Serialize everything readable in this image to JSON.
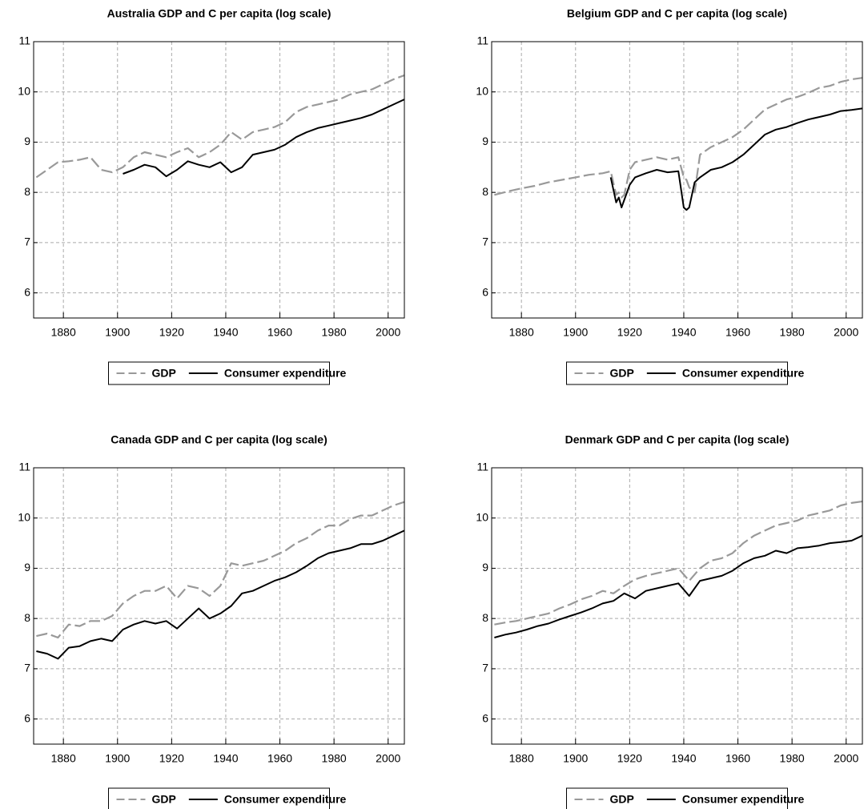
{
  "chart_data": [
    {
      "type": "line",
      "title": "Australia GDP and C per capita (log scale)",
      "x": [
        1870,
        1874,
        1878,
        1882,
        1886,
        1890,
        1894,
        1898,
        1902,
        1906,
        1910,
        1914,
        1918,
        1922,
        1926,
        1930,
        1934,
        1938,
        1942,
        1946,
        1950,
        1954,
        1958,
        1962,
        1966,
        1970,
        1974,
        1978,
        1982,
        1986,
        1990,
        1994,
        1998,
        2002,
        2006
      ],
      "series": [
        {
          "name": "GDP",
          "color": "#999999",
          "dash": true,
          "values": [
            8.3,
            8.45,
            8.6,
            8.62,
            8.65,
            8.7,
            8.45,
            8.4,
            8.5,
            8.7,
            8.8,
            8.75,
            8.7,
            8.8,
            8.88,
            8.7,
            8.8,
            8.95,
            9.2,
            9.05,
            9.2,
            9.25,
            9.3,
            9.4,
            9.6,
            9.7,
            9.75,
            9.8,
            9.85,
            9.95,
            10.0,
            10.05,
            10.15,
            10.25,
            10.33
          ]
        },
        {
          "name": "Consumer expenditure",
          "color": "#000000",
          "dash": false,
          "values": [
            null,
            null,
            null,
            null,
            null,
            null,
            null,
            null,
            8.37,
            8.45,
            8.55,
            8.5,
            8.32,
            8.45,
            8.62,
            8.55,
            8.5,
            8.6,
            8.4,
            8.5,
            8.75,
            8.8,
            8.85,
            8.95,
            9.1,
            9.2,
            9.28,
            9.33,
            9.38,
            9.43,
            9.48,
            9.55,
            9.65,
            9.75,
            9.85
          ]
        }
      ],
      "xlim": [
        1869,
        2006
      ],
      "ylim": [
        5.5,
        11
      ],
      "xticks": [
        1880,
        1900,
        1920,
        1940,
        1960,
        1980,
        2000
      ],
      "yticks": [
        6,
        7,
        8,
        9,
        10,
        11
      ],
      "grid": true
    },
    {
      "type": "line",
      "title": "Belgium GDP and C per capita (log scale)",
      "x": [
        1870,
        1875,
        1880,
        1885,
        1890,
        1895,
        1900,
        1905,
        1910,
        1913,
        1915,
        1916,
        1917,
        1918,
        1920,
        1922,
        1926,
        1930,
        1934,
        1938,
        1940,
        1941,
        1942,
        1944,
        1946,
        1950,
        1954,
        1958,
        1962,
        1966,
        1970,
        1974,
        1978,
        1982,
        1986,
        1990,
        1994,
        1998,
        2002,
        2006
      ],
      "series": [
        {
          "name": "GDP",
          "color": "#999999",
          "dash": true,
          "values": [
            7.95,
            8.02,
            8.08,
            8.13,
            8.2,
            8.25,
            8.3,
            8.35,
            8.38,
            8.42,
            7.95,
            8.0,
            7.9,
            7.95,
            8.45,
            8.6,
            8.65,
            8.7,
            8.65,
            8.7,
            8.3,
            8.25,
            8.1,
            8.0,
            8.75,
            8.9,
            9.0,
            9.1,
            9.25,
            9.45,
            9.65,
            9.75,
            9.85,
            9.9,
            9.98,
            10.08,
            10.12,
            10.2,
            10.25,
            10.28
          ]
        },
        {
          "name": "Consumer expenditure",
          "color": "#000000",
          "dash": false,
          "values": [
            null,
            null,
            null,
            null,
            null,
            null,
            null,
            null,
            null,
            8.3,
            7.8,
            7.9,
            7.7,
            7.85,
            8.15,
            8.3,
            8.38,
            8.45,
            8.4,
            8.42,
            7.7,
            7.65,
            7.7,
            8.2,
            8.3,
            8.45,
            8.5,
            8.6,
            8.75,
            8.95,
            9.15,
            9.25,
            9.3,
            9.38,
            9.45,
            9.5,
            9.55,
            9.62,
            9.64,
            9.67
          ]
        }
      ],
      "xlim": [
        1869,
        2006
      ],
      "ylim": [
        5.5,
        11
      ],
      "xticks": [
        1880,
        1900,
        1920,
        1940,
        1960,
        1980,
        2000
      ],
      "yticks": [
        6,
        7,
        8,
        9,
        10,
        11
      ],
      "grid": true
    },
    {
      "type": "line",
      "title": "Canada GDP and C per capita (log scale)",
      "x": [
        1870,
        1874,
        1878,
        1882,
        1886,
        1890,
        1894,
        1898,
        1902,
        1906,
        1910,
        1914,
        1918,
        1922,
        1926,
        1930,
        1934,
        1938,
        1942,
        1946,
        1950,
        1954,
        1958,
        1962,
        1966,
        1970,
        1974,
        1978,
        1982,
        1986,
        1990,
        1994,
        1998,
        2002,
        2006
      ],
      "series": [
        {
          "name": "GDP",
          "color": "#999999",
          "dash": true,
          "values": [
            7.65,
            7.7,
            7.62,
            7.88,
            7.85,
            7.95,
            7.95,
            8.05,
            8.3,
            8.45,
            8.55,
            8.55,
            8.65,
            8.4,
            8.65,
            8.6,
            8.45,
            8.65,
            9.1,
            9.05,
            9.1,
            9.15,
            9.25,
            9.35,
            9.5,
            9.6,
            9.75,
            9.85,
            9.85,
            9.98,
            10.05,
            10.05,
            10.15,
            10.25,
            10.32
          ]
        },
        {
          "name": "Consumer expenditure",
          "color": "#000000",
          "dash": false,
          "values": [
            7.35,
            7.3,
            7.2,
            7.42,
            7.45,
            7.55,
            7.6,
            7.55,
            7.78,
            7.88,
            7.95,
            7.9,
            7.95,
            7.8,
            8.0,
            8.2,
            8.0,
            8.1,
            8.25,
            8.5,
            8.55,
            8.65,
            8.75,
            8.82,
            8.92,
            9.05,
            9.2,
            9.3,
            9.35,
            9.4,
            9.48,
            9.48,
            9.55,
            9.65,
            9.75
          ]
        }
      ],
      "xlim": [
        1869,
        2006
      ],
      "ylim": [
        5.5,
        11
      ],
      "xticks": [
        1880,
        1900,
        1920,
        1940,
        1960,
        1980,
        2000
      ],
      "yticks": [
        6,
        7,
        8,
        9,
        10,
        11
      ],
      "grid": true
    },
    {
      "type": "line",
      "title": "Denmark GDP and C per capita (log scale)",
      "x": [
        1870,
        1874,
        1878,
        1882,
        1886,
        1890,
        1894,
        1898,
        1902,
        1906,
        1910,
        1914,
        1918,
        1922,
        1926,
        1930,
        1934,
        1938,
        1942,
        1946,
        1950,
        1954,
        1958,
        1962,
        1966,
        1970,
        1974,
        1978,
        1982,
        1986,
        1990,
        1994,
        1998,
        2002,
        2006
      ],
      "series": [
        {
          "name": "GDP",
          "color": "#999999",
          "dash": true,
          "values": [
            7.88,
            7.92,
            7.95,
            8.0,
            8.05,
            8.1,
            8.2,
            8.28,
            8.38,
            8.45,
            8.55,
            8.5,
            8.65,
            8.78,
            8.85,
            8.9,
            8.95,
            9.0,
            8.75,
            9.0,
            9.15,
            9.2,
            9.3,
            9.5,
            9.65,
            9.75,
            9.85,
            9.9,
            9.95,
            10.05,
            10.1,
            10.15,
            10.25,
            10.3,
            10.33
          ]
        },
        {
          "name": "Consumer expenditure",
          "color": "#000000",
          "dash": false,
          "values": [
            7.62,
            7.68,
            7.72,
            7.78,
            7.85,
            7.9,
            7.98,
            8.05,
            8.12,
            8.2,
            8.3,
            8.35,
            8.5,
            8.4,
            8.55,
            8.6,
            8.65,
            8.7,
            8.45,
            8.75,
            8.8,
            8.85,
            8.95,
            9.1,
            9.2,
            9.25,
            9.35,
            9.3,
            9.4,
            9.42,
            9.45,
            9.5,
            9.52,
            9.55,
            9.65
          ]
        }
      ],
      "xlim": [
        1869,
        2006
      ],
      "ylim": [
        5.5,
        11
      ],
      "xticks": [
        1880,
        1900,
        1920,
        1940,
        1960,
        1980,
        2000
      ],
      "yticks": [
        6,
        7,
        8,
        9,
        10,
        11
      ],
      "grid": true
    }
  ]
}
